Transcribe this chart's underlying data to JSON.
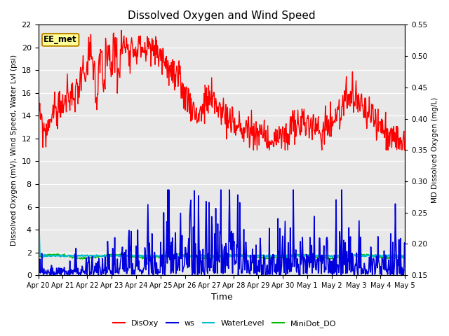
{
  "title": "Dissolved Oxygen and Wind Speed",
  "xlabel": "Time",
  "ylabel_left": "Dissolved Oxygen (mV), Wind Speed, Water Lvl (psi)",
  "ylabel_right": "MD Dissolved Oxygen (mg/L)",
  "ylim_left": [
    0,
    22
  ],
  "ylim_right": [
    0.15,
    0.55
  ],
  "yticks_left": [
    0,
    2,
    4,
    6,
    8,
    10,
    12,
    14,
    16,
    18,
    20,
    22
  ],
  "yticks_right": [
    0.15,
    0.2,
    0.25,
    0.3,
    0.35,
    0.4,
    0.45,
    0.5,
    0.55
  ],
  "xtick_labels": [
    "Apr 20",
    "Apr 21",
    "Apr 22",
    "Apr 23",
    "Apr 24",
    "Apr 25",
    "Apr 26",
    "Apr 27",
    "Apr 28",
    "Apr 29",
    "Apr 30",
    "May 1",
    "May 2",
    "May 3",
    "May 4",
    "May 5"
  ],
  "annotation_text": "EE_met",
  "annotation_bbox": {
    "boxstyle": "round,pad=0.2",
    "facecolor": "#FFFF99",
    "edgecolor": "#BB8800"
  },
  "colors": {
    "DisOxy": "#FF0000",
    "ws": "#0000DD",
    "WaterLevel": "#00BBCC",
    "MiniDot_DO": "#00BB00"
  },
  "linewidths": {
    "DisOxy": 1.0,
    "ws": 1.2,
    "WaterLevel": 1.5,
    "MiniDot_DO": 1.0
  },
  "background_color": "#E8E8E8",
  "n_points": 720,
  "seed": 99
}
